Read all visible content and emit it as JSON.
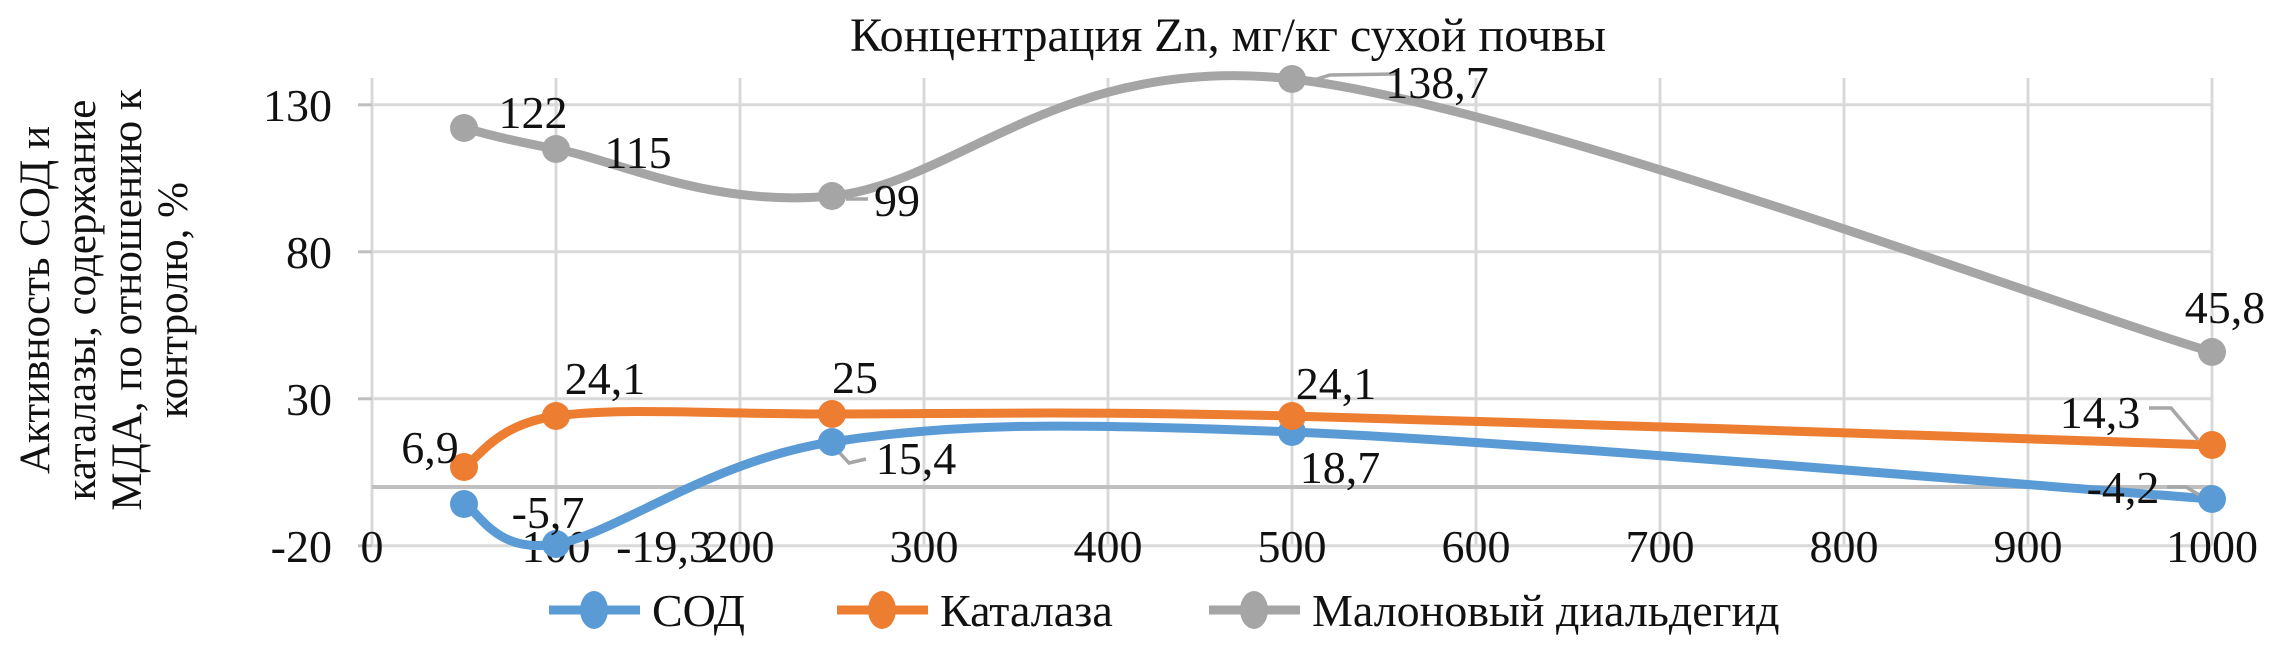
{
  "chart_data": {
    "type": "line",
    "subtype": "scatter-smooth-markers",
    "title": "Концентрация Zn, мг/кг сухой почвы",
    "y_axis_title_lines": [
      "Активность СОД и",
      "каталазы, содержание",
      "МДА, по отношению к",
      "контролю, %"
    ],
    "x_label_note": "x values are Zn concentration, mg/kg dry soil",
    "x": [
      50,
      100,
      250,
      500,
      1000
    ],
    "series": [
      {
        "name": "СОД",
        "color": "#5B9BD5",
        "values": [
          -5.7,
          -19.3,
          15.4,
          18.7,
          -4.2
        ],
        "point_labels": [
          "-5,7",
          "-19,3",
          "15,4",
          "18,7",
          "-4,2"
        ]
      },
      {
        "name": "Каталаза",
        "color": "#ED7D31",
        "values": [
          6.9,
          24.1,
          25,
          24.1,
          14.3
        ],
        "point_labels": [
          "6,9",
          "24,1",
          "25",
          "24,1",
          "14,3"
        ]
      },
      {
        "name": "Малоновый диальдегид",
        "color": "#A5A5A5",
        "values": [
          122,
          115,
          99,
          138.7,
          45.8
        ],
        "point_labels": [
          "122",
          "115",
          "99",
          "138,7",
          "45,8"
        ]
      }
    ],
    "x_ticks": [
      0,
      100,
      200,
      300,
      400,
      500,
      600,
      700,
      800,
      900,
      1000
    ],
    "y_ticks": [
      -20,
      30,
      80,
      130
    ],
    "xlim": [
      0,
      1000
    ],
    "ylim": [
      -20,
      130
    ],
    "axis_cross_y": 0,
    "grid": true,
    "legend_position": "bottom",
    "decimal_separator": ","
  },
  "colors": {
    "background": "#FFFFFF",
    "gridline": "#D9D9D9",
    "axis_line": "#BFBFBF",
    "leader_line": "#A6A6A6",
    "text": "#111111"
  }
}
